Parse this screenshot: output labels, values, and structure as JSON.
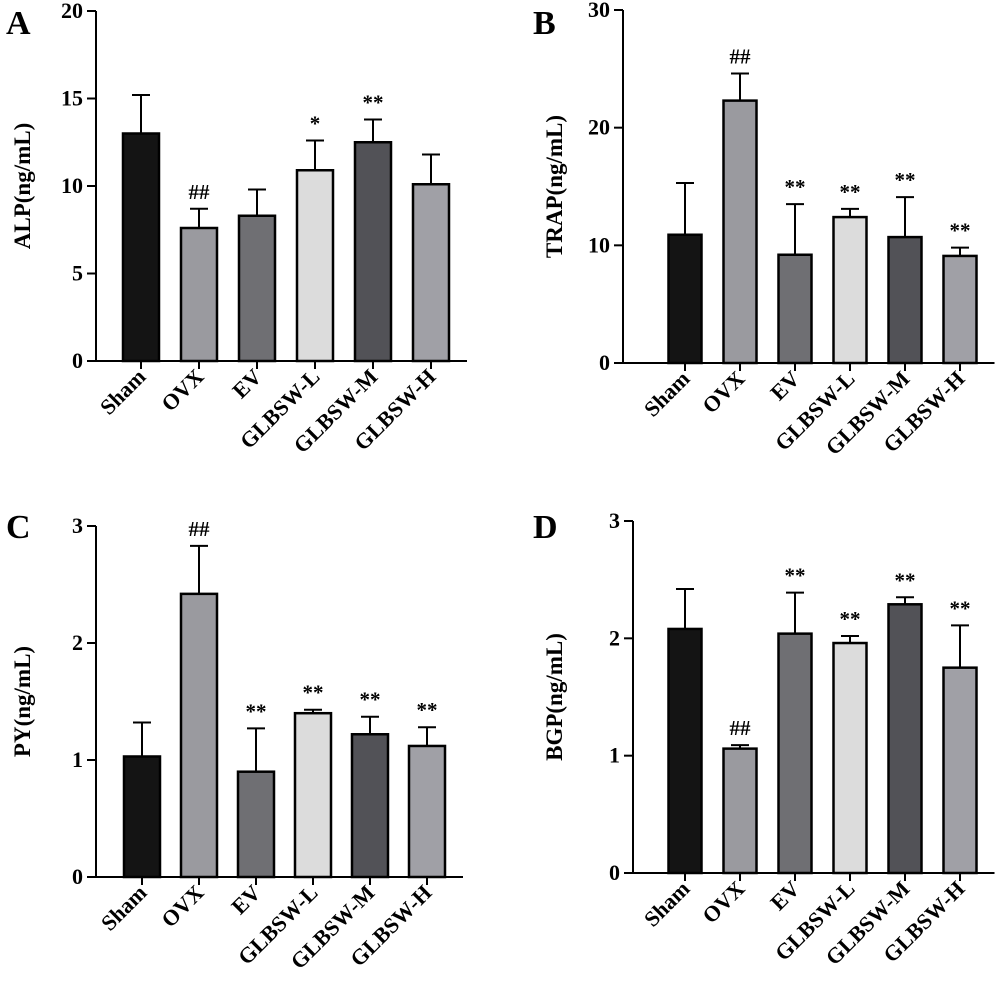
{
  "colors": [
    "#141414",
    "#9a9a9f",
    "#6f6f73",
    "#dcdcdc",
    "#525257",
    "#a0a0a6"
  ],
  "chart_data": [
    {
      "type": "bar",
      "panel": "A",
      "ylabel": "ALP(ng/mL)",
      "ylim": [
        0,
        20
      ],
      "yticks": [
        0,
        5,
        10,
        15,
        20
      ],
      "categories": [
        "Sham",
        "OVX",
        "EV",
        "GLBSW-L",
        "GLBSW-M",
        "GLBSW-H"
      ],
      "values": [
        13.0,
        7.6,
        8.3,
        10.9,
        12.5,
        10.1
      ],
      "errors": [
        2.2,
        1.1,
        1.5,
        1.7,
        1.3,
        1.7
      ],
      "annotations": [
        "",
        "##",
        "",
        "*",
        "**",
        ""
      ]
    },
    {
      "type": "bar",
      "panel": "B",
      "ylabel": "TRAP(ng/mL)",
      "ylim": [
        0,
        30
      ],
      "yticks": [
        0,
        10,
        20,
        30
      ],
      "categories": [
        "Sham",
        "OVX",
        "EV",
        "GLBSW-L",
        "GLBSW-M",
        "GLBSW-H"
      ],
      "values": [
        10.9,
        22.3,
        9.2,
        12.4,
        10.7,
        9.1
      ],
      "errors": [
        4.4,
        2.3,
        4.3,
        0.7,
        3.4,
        0.7
      ],
      "annotations": [
        "",
        "##",
        "**",
        "**",
        "**",
        "**"
      ]
    },
    {
      "type": "bar",
      "panel": "C",
      "ylabel": "PY(ng/mL)",
      "ylim": [
        0,
        3
      ],
      "yticks": [
        0,
        1,
        2,
        3
      ],
      "categories": [
        "Sham",
        "OVX",
        "EV",
        "GLBSW-L",
        "GLBSW-M",
        "GLBSW-H"
      ],
      "values": [
        1.03,
        2.42,
        0.9,
        1.4,
        1.22,
        1.12
      ],
      "errors": [
        0.29,
        0.41,
        0.37,
        0.03,
        0.15,
        0.16
      ],
      "annotations": [
        "",
        "##",
        "**",
        "**",
        "**",
        "**"
      ]
    },
    {
      "type": "bar",
      "panel": "D",
      "ylabel": "BGP(ng/mL)",
      "ylim": [
        0,
        3
      ],
      "yticks": [
        0,
        1,
        2,
        3
      ],
      "categories": [
        "Sham",
        "OVX",
        "EV",
        "GLBSW-L",
        "GLBSW-M",
        "GLBSW-H"
      ],
      "values": [
        2.08,
        1.06,
        2.04,
        1.96,
        2.29,
        1.75
      ],
      "errors": [
        0.34,
        0.03,
        0.35,
        0.06,
        0.06,
        0.36
      ],
      "annotations": [
        "",
        "##",
        "**",
        "**",
        "**",
        "**"
      ]
    }
  ]
}
